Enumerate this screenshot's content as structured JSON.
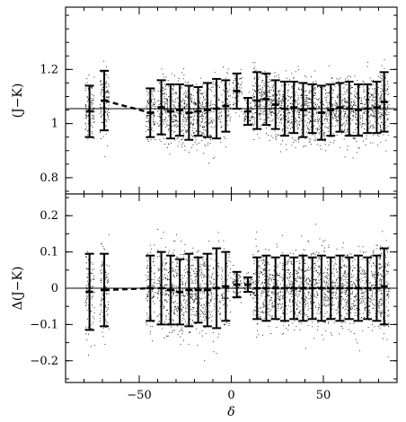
{
  "chart_data": {
    "shared_x": {
      "label": "δ",
      "range": [
        -90,
        90
      ],
      "ticks": [
        -50,
        0,
        50
      ],
      "tick_labels": [
        "−50",
        "0",
        "50"
      ]
    },
    "panels": [
      {
        "type": "scatter",
        "ylabel": "(J−K)",
        "ylim": [
          0.74,
          1.43
        ],
        "yticks": [
          0.8,
          1,
          1.2
        ],
        "ytick_labels": [
          "0.8",
          "1",
          "1.2"
        ],
        "reference_line": 1.055,
        "binned_points": [
          {
            "x": -77,
            "y": 1.045,
            "err": 0.095
          },
          {
            "x": -69,
            "y": 1.085,
            "err": 0.11
          },
          {
            "x": -44,
            "y": 1.04,
            "err": 0.09
          },
          {
            "x": -38,
            "y": 1.06,
            "err": 0.1
          },
          {
            "x": -33,
            "y": 1.045,
            "err": 0.1
          },
          {
            "x": -28,
            "y": 1.05,
            "err": 0.095
          },
          {
            "x": -23,
            "y": 1.04,
            "err": 0.1
          },
          {
            "x": -18,
            "y": 1.045,
            "err": 0.09
          },
          {
            "x": -13,
            "y": 1.05,
            "err": 0.1
          },
          {
            "x": -8,
            "y": 1.055,
            "err": 0.11
          },
          {
            "x": -3,
            "y": 1.065,
            "err": 0.095
          },
          {
            "x": 3,
            "y": 1.12,
            "err": 0.065
          },
          {
            "x": 9,
            "y": 1.045,
            "err": 0.05
          },
          {
            "x": 14,
            "y": 1.085,
            "err": 0.105
          },
          {
            "x": 19,
            "y": 1.09,
            "err": 0.095
          },
          {
            "x": 24,
            "y": 1.07,
            "err": 0.09
          },
          {
            "x": 29,
            "y": 1.055,
            "err": 0.1
          },
          {
            "x": 34,
            "y": 1.06,
            "err": 0.095
          },
          {
            "x": 39,
            "y": 1.05,
            "err": 0.1
          },
          {
            "x": 44,
            "y": 1.055,
            "err": 0.09
          },
          {
            "x": 49,
            "y": 1.04,
            "err": 0.1
          },
          {
            "x": 54,
            "y": 1.05,
            "err": 0.095
          },
          {
            "x": 59,
            "y": 1.06,
            "err": 0.09
          },
          {
            "x": 64,
            "y": 1.055,
            "err": 0.1
          },
          {
            "x": 69,
            "y": 1.05,
            "err": 0.095
          },
          {
            "x": 74,
            "y": 1.055,
            "err": 0.09
          },
          {
            "x": 79,
            "y": 1.06,
            "err": 0.095
          },
          {
            "x": 83,
            "y": 1.08,
            "err": 0.11
          }
        ],
        "dashed_segment_x": [
          -69,
          -44
        ]
      },
      {
        "type": "scatter",
        "ylabel": "Δ(J−K)",
        "ylim": [
          -0.26,
          0.26
        ],
        "yticks": [
          -0.2,
          -0.1,
          0,
          0.1,
          0.2
        ],
        "ytick_labels": [
          "−0.2",
          "−0.1",
          "0",
          "0.1",
          "0.2"
        ],
        "reference_line": 0,
        "binned_points": [
          {
            "x": -77,
            "y": -0.01,
            "err": 0.105
          },
          {
            "x": -69,
            "y": -0.005,
            "err": 0.1
          },
          {
            "x": -44,
            "y": 0.0,
            "err": 0.09
          },
          {
            "x": -38,
            "y": 0.0,
            "err": 0.1
          },
          {
            "x": -33,
            "y": -0.005,
            "err": 0.095
          },
          {
            "x": -28,
            "y": -0.01,
            "err": 0.09
          },
          {
            "x": -23,
            "y": -0.005,
            "err": 0.1
          },
          {
            "x": -18,
            "y": -0.005,
            "err": 0.09
          },
          {
            "x": -13,
            "y": -0.005,
            "err": 0.1
          },
          {
            "x": -8,
            "y": 0.0,
            "err": 0.11
          },
          {
            "x": -3,
            "y": 0.005,
            "err": 0.095
          },
          {
            "x": 3,
            "y": 0.01,
            "err": 0.035
          },
          {
            "x": 9,
            "y": 0.01,
            "err": 0.02
          },
          {
            "x": 14,
            "y": 0.0,
            "err": 0.085
          },
          {
            "x": 19,
            "y": 0.0,
            "err": 0.09
          },
          {
            "x": 24,
            "y": 0.0,
            "err": 0.085
          },
          {
            "x": 29,
            "y": 0.0,
            "err": 0.09
          },
          {
            "x": 34,
            "y": 0.0,
            "err": 0.085
          },
          {
            "x": 39,
            "y": 0.0,
            "err": 0.09
          },
          {
            "x": 44,
            "y": 0.0,
            "err": 0.085
          },
          {
            "x": 49,
            "y": 0.0,
            "err": 0.09
          },
          {
            "x": 54,
            "y": 0.0,
            "err": 0.085
          },
          {
            "x": 59,
            "y": 0.0,
            "err": 0.09
          },
          {
            "x": 64,
            "y": 0.0,
            "err": 0.085
          },
          {
            "x": 69,
            "y": 0.0,
            "err": 0.09
          },
          {
            "x": 74,
            "y": 0.0,
            "err": 0.085
          },
          {
            "x": 79,
            "y": 0.0,
            "err": 0.09
          },
          {
            "x": 83,
            "y": 0.005,
            "err": 0.105
          }
        ],
        "dashed_segment_x": [
          -69,
          -44
        ]
      }
    ]
  }
}
